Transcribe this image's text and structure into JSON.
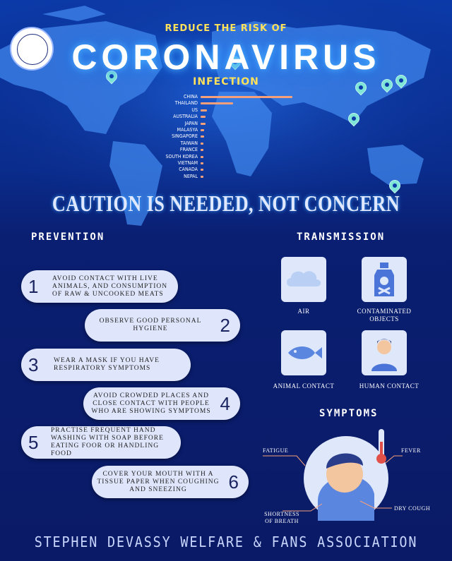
{
  "header": {
    "kicker": "REDUCE THE RISK OF",
    "title": "CORONAVIRUS",
    "subtitle": "INFECTION"
  },
  "chart_data": {
    "type": "bar",
    "categories": [
      "CHINA",
      "THAILAND",
      "US",
      "AUSTRALIA",
      "JAPAN",
      "MALASYA",
      "SINGAPORE",
      "TAIWAN",
      "FRANCE",
      "SOUTH KOREA",
      "VIETNAM",
      "CANADA",
      "NEPAL"
    ],
    "values": [
      100,
      35,
      7,
      5,
      5,
      4,
      4,
      3,
      3,
      3,
      2,
      2,
      1
    ]
  },
  "banner": "CAUTION IS NEEDED, NOT CONCERN",
  "prevention": {
    "heading": "PREVENTION",
    "items": [
      {
        "num": "1",
        "text": "AVOID CONTACT WITH LIVE ANIMALS, AND CONSUMPTION OF RAW & UNCOOKED MEATS"
      },
      {
        "num": "2",
        "text": "OBSERVE GOOD PERSONAL HYGIENE"
      },
      {
        "num": "3",
        "text": "WEAR A MASK IF YOU HAVE RESPIRATORY SYMPTOMS"
      },
      {
        "num": "4",
        "text": "AVOID CROWDED PLACES AND CLOSE CONTACT WITH PEOPLE WHO ARE SHOWING SYMPTOMS"
      },
      {
        "num": "5",
        "text": "PRACTISE FREQUENT HAND WASHING WITH SOAP BEFORE EATING FOOR OR HANDLING FOOD"
      },
      {
        "num": "6",
        "text": "COVER YOUR MOUTH WITH A TISSUE PAPER WHEN COUGHING AND SNEEZING"
      }
    ]
  },
  "transmission": {
    "heading": "TRANSMISSION",
    "items": [
      {
        "label": "AIR",
        "icon": "cloud-icon"
      },
      {
        "label": "CONTAMINATED OBJECTS",
        "icon": "poison-bottle-icon"
      },
      {
        "label": "ANIMAL CONTACT",
        "icon": "fish-icon"
      },
      {
        "label": "HUMAN CONTACT",
        "icon": "person-icon"
      }
    ]
  },
  "symptoms": {
    "heading": "SYMPTOMS",
    "fatigue": "FATIGUE",
    "fever": "FEVER",
    "dry_cough": "DRY COUGH",
    "breath": "SHORTNESS OF BREATH"
  },
  "footer": "STEPHEN DEVASSY WELFARE & FANS ASSOCIATION",
  "colors": {
    "accent_yellow": "#ffe25a",
    "bar": "#f6a07a",
    "pill": "#dfe6fb",
    "background": "#0a1a6e"
  }
}
